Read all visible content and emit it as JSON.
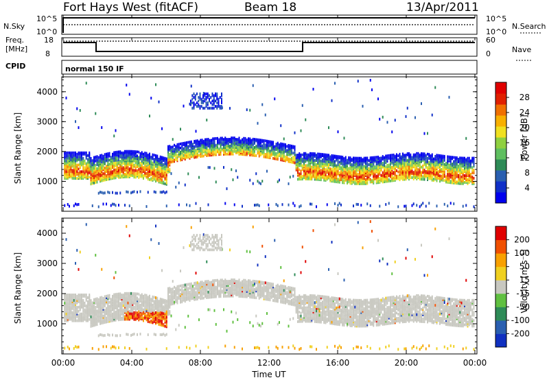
{
  "header": {
    "station": "Fort Hays West (fitACF)",
    "beam": "Beam 18",
    "date": "13/Apr/2011"
  },
  "noise_panel": {
    "left_label": "N.Sky",
    "left_ticks": [
      "10^5",
      "10^0"
    ],
    "right_label": "N.Search",
    "right_ticks": [
      "10^5",
      "10^0"
    ]
  },
  "freq_panel": {
    "left_label_1": "Freq.",
    "left_label_2": "[MHz]",
    "left_ticks": [
      "18",
      "8"
    ],
    "right_label": "Nave",
    "right_ticks": [
      "60",
      "0"
    ]
  },
  "cpid_panel": {
    "label": "CPID",
    "text": "normal 150 IF"
  },
  "colorbar_power": {
    "title": "Power [dB]",
    "ticks": [
      "28",
      "24",
      "20",
      "16",
      "12",
      "8",
      "4"
    ],
    "colors": [
      "#0000ee",
      "#1030c8",
      "#2a5fb0",
      "#2e8b57",
      "#5fbf60",
      "#8fd040",
      "#f0e020",
      "#f8b000",
      "#f07000",
      "#e02000",
      "#e00000"
    ]
  },
  "colorbar_velocity": {
    "title": "Velocity [m s⁻¹]",
    "ticks": [
      "200",
      "100",
      "50",
      "15",
      "-15",
      "-50",
      "-100",
      "-200"
    ],
    "colors": [
      "#1030c0",
      "#2a5fb0",
      "#2e8b57",
      "#60c040",
      "#c8c8c0",
      "#f0d020",
      "#f8a000",
      "#f05000",
      "#e00000"
    ]
  },
  "chart_data": [
    {
      "type": "heatmap",
      "name": "power",
      "ylabel": "Slant Range [km]",
      "xlabel": "",
      "yticks": [
        "1000",
        "2000",
        "3000",
        "4000"
      ],
      "ylim": [
        0,
        4500
      ],
      "xlim": [
        0,
        24
      ],
      "units": "dB",
      "clim": [
        0,
        30
      ]
    },
    {
      "type": "heatmap",
      "name": "velocity",
      "ylabel": "Slant Range [km]",
      "xlabel": "Time UT",
      "yticks": [
        "1000",
        "2000",
        "3000",
        "4000"
      ],
      "xticks": [
        "00:00",
        "04:00",
        "08:00",
        "12:00",
        "16:00",
        "20:00",
        "00:00"
      ],
      "ylim": [
        0,
        4500
      ],
      "xlim": [
        0,
        24
      ],
      "units": "m s-1",
      "clim": [
        -250,
        250
      ]
    }
  ]
}
